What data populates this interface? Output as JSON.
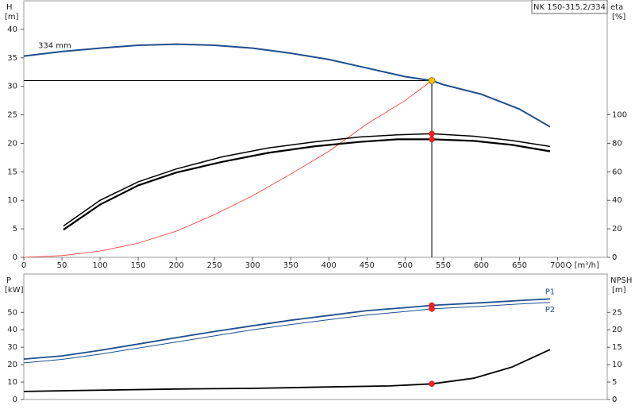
{
  "chart_data": [
    {
      "type": "line",
      "title": "NK 150-315.2/334",
      "ylabel": "H",
      "yunit": "[m]",
      "y2label": "eta",
      "y2unit": "[%]",
      "xlabel": "Q [m³/h]",
      "xlim": [
        0,
        765
      ],
      "ylim": [
        0,
        45
      ],
      "y2lim": [
        0,
        180
      ],
      "xticks": [
        0,
        50,
        100,
        150,
        200,
        250,
        300,
        350,
        400,
        450,
        500,
        550,
        600,
        650,
        700
      ],
      "yticks": [
        0,
        5,
        10,
        15,
        20,
        25,
        30,
        35,
        40
      ],
      "y2ticks": [
        0,
        20,
        40,
        60,
        80,
        100
      ],
      "operating_point": {
        "x": 535,
        "y": 31,
        "color": "#ffc000"
      },
      "series": [
        {
          "name": "334 mm",
          "color": "#1f4e8c",
          "width": 2,
          "x": [
            0,
            50,
            100,
            150,
            200,
            250,
            300,
            350,
            400,
            450,
            500,
            535,
            550,
            600,
            650,
            690
          ],
          "values": [
            35.3,
            36.1,
            36.7,
            37.2,
            37.4,
            37.2,
            36.7,
            35.8,
            34.7,
            33.2,
            31.7,
            31,
            30.3,
            28.6,
            26,
            22.9
          ]
        },
        {
          "color": "#ff3333",
          "width": 0.8,
          "x": [
            0,
            50,
            100,
            150,
            200,
            250,
            300,
            350,
            400,
            450,
            500,
            535
          ],
          "values": [
            0,
            0.3,
            1.1,
            2.5,
            4.6,
            7.5,
            10.8,
            14.6,
            18.6,
            23.4,
            27.5,
            31
          ]
        },
        {
          "color": "#000000",
          "width": 1.5,
          "axis": "y2",
          "x": [
            52,
            100,
            150,
            200,
            260,
            320,
            380,
            440,
            490,
            535,
            590,
            640,
            690
          ],
          "values": [
            22,
            40,
            53,
            62,
            70.5,
            76.7,
            81,
            84.4,
            86,
            86.7,
            85,
            82,
            77.8
          ]
        },
        {
          "color": "#000000",
          "width": 2.2,
          "axis": "y2",
          "x": [
            52,
            100,
            150,
            200,
            260,
            320,
            380,
            440,
            490,
            535,
            590,
            640,
            690
          ],
          "values": [
            19.4,
            37,
            50.5,
            59.5,
            67,
            73.3,
            77.8,
            81,
            82.8,
            82.8,
            81.7,
            78.9,
            74.4
          ]
        }
      ],
      "markers": [
        {
          "x": 535,
          "y": 86.7,
          "axis": "y2",
          "color": "#ff2020"
        },
        {
          "x": 535,
          "y": 82.8,
          "axis": "y2",
          "color": "#ff2020"
        }
      ]
    },
    {
      "type": "line",
      "ylabel": "P",
      "yunit": "[kW]",
      "y2label": "NPSH",
      "y2unit": "[m]",
      "xlim": [
        0,
        765
      ],
      "ylim": [
        0,
        72
      ],
      "y2lim": [
        0,
        36
      ],
      "yticks": [
        0,
        10,
        20,
        30,
        40,
        50
      ],
      "y2ticks": [
        0,
        5,
        10,
        15,
        20,
        25
      ],
      "series": [
        {
          "name": "P1",
          "color": "#1f4e8c",
          "width": 1.8,
          "x": [
            0,
            50,
            100,
            150,
            200,
            250,
            300,
            350,
            400,
            450,
            500,
            535,
            600,
            650,
            690
          ],
          "values": [
            23.2,
            25,
            28.2,
            31.8,
            35.5,
            39,
            42.3,
            45.5,
            48.2,
            51,
            52.7,
            54,
            55.5,
            56.8,
            57.7
          ]
        },
        {
          "name": "P2",
          "color": "#1f4e8c",
          "width": 1,
          "x": [
            0,
            50,
            100,
            150,
            200,
            250,
            300,
            350,
            400,
            450,
            500,
            535,
            600,
            650,
            690
          ],
          "values": [
            21,
            23,
            26,
            29.5,
            33,
            36.5,
            40,
            43,
            45.8,
            48.5,
            50.5,
            52,
            53.5,
            54.8,
            55.7
          ]
        },
        {
          "color": "#000000",
          "width": 1.8,
          "axis": "y2",
          "x": [
            0,
            50,
            200,
            300,
            400,
            480,
            535,
            590,
            640,
            690
          ],
          "values": [
            2.3,
            2.5,
            3,
            3.2,
            3.6,
            3.9,
            4.5,
            6.1,
            9.3,
            14.3
          ]
        }
      ],
      "markers": [
        {
          "x": 535,
          "y": 54,
          "color": "#ff2020"
        },
        {
          "x": 535,
          "y": 52,
          "color": "#ff2020"
        },
        {
          "x": 535,
          "y": 4.5,
          "axis": "y2",
          "color": "#ff2020"
        }
      ]
    }
  ]
}
